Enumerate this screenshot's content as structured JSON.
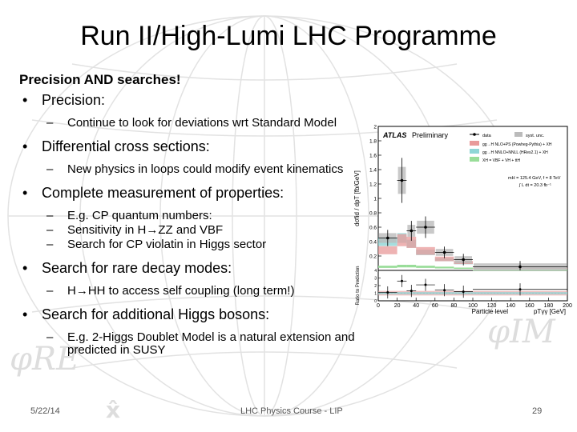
{
  "slide": {
    "title": "Run II/High-Lumi LHC Programme",
    "heading": "Precision AND searches!",
    "bullets": [
      {
        "text": "Precision:",
        "subs": [
          "Continue to look for deviations wrt Standard Model"
        ]
      },
      {
        "text": "Differential cross sections:",
        "subs": [
          "New physics in loops could modify event kinematics"
        ]
      },
      {
        "text": "Complete measurement of properties:",
        "subs": [
          "E.g. CP quantum numbers:",
          "Sensitivity in H→ZZ and VBF",
          "Search for CP violatin in Higgs sector"
        ]
      },
      {
        "text": "Search for rare decay modes:",
        "subs": [
          "H→HH to access self coupling (long term!)"
        ]
      },
      {
        "text": "Search for additional Higgs bosons:",
        "subs": [
          "E.g. 2-Higgs Doublet Model is a natural extension and predicted in SUSY"
        ]
      }
    ],
    "footer": {
      "date": "5/22/14",
      "course": "LHC Physics Course - LIP",
      "page": "29"
    },
    "background_symbols": {
      "phi_re": "φRE",
      "phi_im": "φIM",
      "x_hat": "x̂"
    }
  },
  "figure": {
    "experiment": "ATLAS",
    "status": "Preliminary",
    "ylabel": "dσfid / dpT [fb/GeV]",
    "ratio_label": "Ratio to Prediction",
    "xlabel": "Particle level",
    "xvar": "pTγγ [GeV]",
    "legend": [
      {
        "label": "data",
        "kind": "marker"
      },
      {
        "label": "syst. unc.",
        "kind": "band",
        "color": "#bbbbbb"
      },
      {
        "label": "gg→H NLO+PS (Powheg-Pythia) + XH",
        "kind": "band",
        "color": "#e89a9a"
      },
      {
        "label": "gg→H NNLO+NNLL (HRes2.1) + XH",
        "kind": "band",
        "color": "#8fd6d6"
      },
      {
        "label": "XH = VBF + VH + ttH",
        "kind": "band",
        "color": "#99dd99"
      }
    ],
    "info": [
      "mH = 125.4 GeV, f = 8 TeV",
      "∫ L dt = 20.3 fb⁻¹"
    ]
  },
  "chart_data": {
    "type": "bar",
    "xlim": [
      0,
      200
    ],
    "ylim": [
      0,
      2
    ],
    "xticks": [
      0,
      20,
      40,
      60,
      80,
      100,
      120,
      140,
      160,
      180,
      200
    ],
    "yticks": [
      0.2,
      0.4,
      0.6,
      0.8,
      1,
      1.2,
      1.4,
      1.6,
      1.8,
      2
    ],
    "bins": [
      [
        0,
        20
      ],
      [
        20,
        30
      ],
      [
        30,
        40
      ],
      [
        40,
        60
      ],
      [
        60,
        80
      ],
      [
        80,
        100
      ],
      [
        100,
        200
      ]
    ],
    "data": [
      0.45,
      1.25,
      0.55,
      0.6,
      0.25,
      0.15,
      0.05
    ],
    "prediction_ggH_powheg": [
      0.28,
      0.42,
      0.39,
      0.27,
      0.16,
      0.11,
      0.03
    ],
    "prediction_ggH_hres": [
      0.4,
      0.45,
      0.37,
      0.25,
      0.15,
      0.1,
      0.03
    ],
    "prediction_XH": [
      0.05,
      0.06,
      0.06,
      0.05,
      0.04,
      0.03,
      0.01
    ],
    "ratio_ylim": [
      0,
      4
    ],
    "ratio_yticks": [
      0,
      1,
      2,
      3,
      4
    ],
    "ratio_data": [
      1.1,
      2.6,
      1.3,
      2.1,
      1.4,
      1.2,
      1.5
    ]
  }
}
